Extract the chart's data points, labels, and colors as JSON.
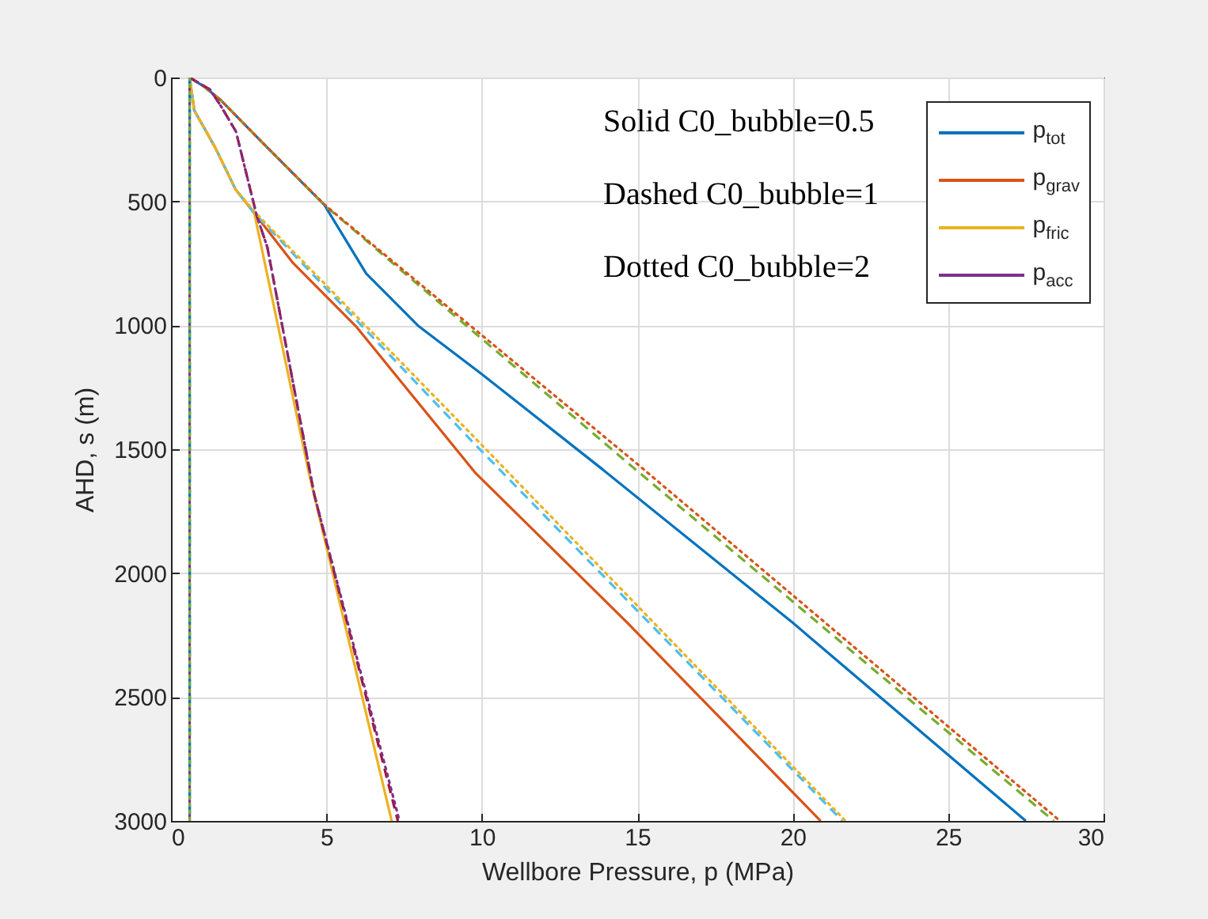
{
  "chart_data": {
    "type": "line",
    "xlabel": "Wellbore Pressure, p (MPa)",
    "ylabel": "AHD, s (m)",
    "xlim": [
      0,
      30
    ],
    "xticks": [
      0,
      5,
      10,
      15,
      20,
      25,
      30
    ],
    "ylim": [
      3000,
      0
    ],
    "yticks": [
      0,
      500,
      1000,
      1500,
      2000,
      2500,
      3000
    ],
    "grid": true,
    "legend": "top right",
    "marker": "none",
    "annotations": [
      "Solid C0_bubble=0.5",
      "Dashed C0_bubble=1",
      "Dotted C0_bubble=2"
    ],
    "series": [
      {
        "name": "p$_{tot}$",
        "color": "#0072bd",
        "line_style": "solid",
        "x": [
          0.6,
          1.08,
          1.59,
          2.93,
          4.94,
          6.28,
          7.97,
          9.98,
          13.84,
          20.0,
          27.5
        ],
        "values": [
          0,
          38,
          90,
          261,
          515,
          791,
          1004,
          1195,
          1577,
          2200,
          3000
        ]
      },
      {
        "name": "p$_{grav}$",
        "color": "#d95319",
        "line_style": "solid",
        "x": [
          0.6,
          0.75,
          1.42,
          2.08,
          2.68,
          3.93,
          5.95,
          9.81,
          14.68,
          20.9
        ],
        "values": [
          0,
          133,
          282,
          452,
          547,
          749,
          1004,
          1598,
          2200,
          3000
        ]
      },
      {
        "name": "p$_{fric}$",
        "color": "#edb120",
        "line_style": "solid",
        "x": [
          0.6,
          0.75,
          1.42,
          2.08,
          2.68,
          4.44,
          7.1
        ],
        "values": [
          0,
          133,
          282,
          452,
          547,
          1598,
          3000
        ]
      },
      {
        "name": "p$_{acc}$",
        "color": "#7e2f8e",
        "line_style": "solid",
        "x": [
          0.6,
          0.6
        ],
        "values": [
          0,
          3000
        ]
      },
      {
        "color": "#77ac30",
        "line_style": "dashed",
        "x": [
          0.6,
          1.08,
          1.59,
          2.93,
          4.94,
          14.9,
          28.4
        ],
        "values": [
          0,
          38,
          90,
          261,
          515,
          1577,
          3000
        ]
      },
      {
        "color": "#4dbeee",
        "line_style": "dashed",
        "x": [
          0.6,
          0.75,
          1.42,
          2.08,
          2.68,
          9.7,
          21.6
        ],
        "values": [
          0,
          133,
          282,
          452,
          547,
          1470,
          3000
        ]
      },
      {
        "color": "#a2142f",
        "line_style": "dashed",
        "x": [
          0.6,
          1.25,
          1.59,
          2.09,
          2.76,
          3.1,
          4.61,
          7.3
        ],
        "values": [
          0,
          48,
          112,
          218,
          558,
          685,
          1683,
          3000
        ]
      },
      {
        "color": "#0072bd",
        "line_style": "dashed",
        "x": [
          0.6,
          0.6
        ],
        "values": [
          0,
          3000
        ]
      },
      {
        "color": "#d95319",
        "line_style": "dotted",
        "x": [
          0.6,
          1.08,
          1.59,
          2.93,
          5.0,
          15.1,
          28.6
        ],
        "values": [
          0,
          38,
          90,
          261,
          520,
          1570,
          3000
        ]
      },
      {
        "color": "#edb120",
        "line_style": "dotted",
        "x": [
          0.6,
          0.75,
          1.42,
          2.08,
          2.75,
          9.9,
          21.7
        ],
        "values": [
          0,
          133,
          282,
          452,
          550,
          1470,
          3000
        ]
      },
      {
        "color": "#7e2f8e",
        "line_style": "dotted",
        "x": [
          0.6,
          1.25,
          1.59,
          2.09,
          2.76,
          3.1,
          4.61,
          7.35
        ],
        "values": [
          0,
          48,
          112,
          218,
          558,
          685,
          1683,
          3000
        ]
      },
      {
        "color": "#77ac30",
        "line_style": "dotted",
        "x": [
          0.6,
          0.6
        ],
        "values": [
          0,
          3000
        ]
      }
    ]
  }
}
